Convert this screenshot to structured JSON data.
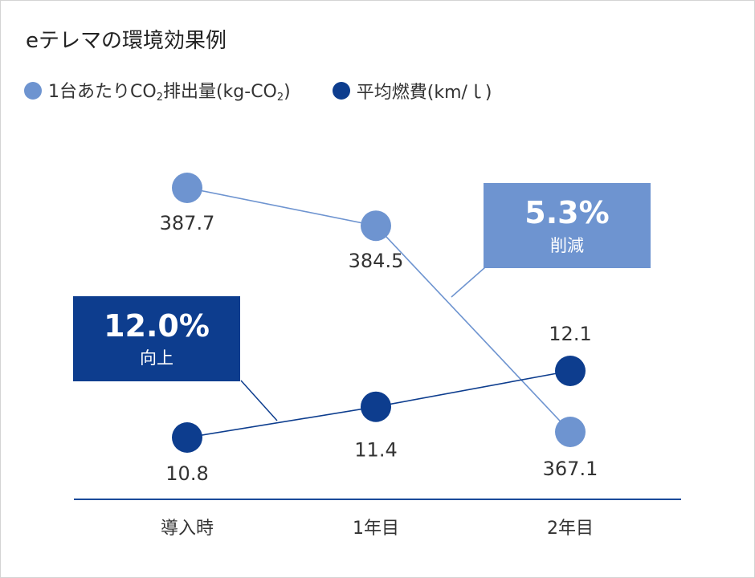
{
  "title": "eテレマの環境効果例",
  "legend": [
    {
      "prefix": "1台あたりCO",
      "sub": "2",
      "mid": "排出量(kg-CO",
      "sub2": "2",
      "suffix": ")",
      "color": "#6e94d0"
    },
    {
      "prefix": "平均燃費(km/ｌ)",
      "color": "#0d3d8e"
    }
  ],
  "callouts": {
    "co2": {
      "pct": "5.3%",
      "label": "削減",
      "color": "#6e94d0"
    },
    "fuel": {
      "pct": "12.0%",
      "label": "向上",
      "color": "#0d3d8e"
    }
  },
  "chart_data": {
    "type": "line",
    "categories": [
      "導入時",
      "1年目",
      "2年目"
    ],
    "series": [
      {
        "name": "1台あたりCO2排出量(kg-CO2)",
        "values": [
          387.7,
          384.5,
          367.1
        ],
        "labels": [
          "387.7",
          "384.5",
          "367.1"
        ],
        "color": "#6e94d0"
      },
      {
        "name": "平均燃費(km/ｌ)",
        "values": [
          10.8,
          11.4,
          12.1
        ],
        "labels": [
          "10.8",
          "11.4",
          "12.1"
        ],
        "color": "#0d3d8e"
      }
    ],
    "axis_color": "#1a4a9a",
    "grid": false,
    "legend_position": "top-left"
  }
}
